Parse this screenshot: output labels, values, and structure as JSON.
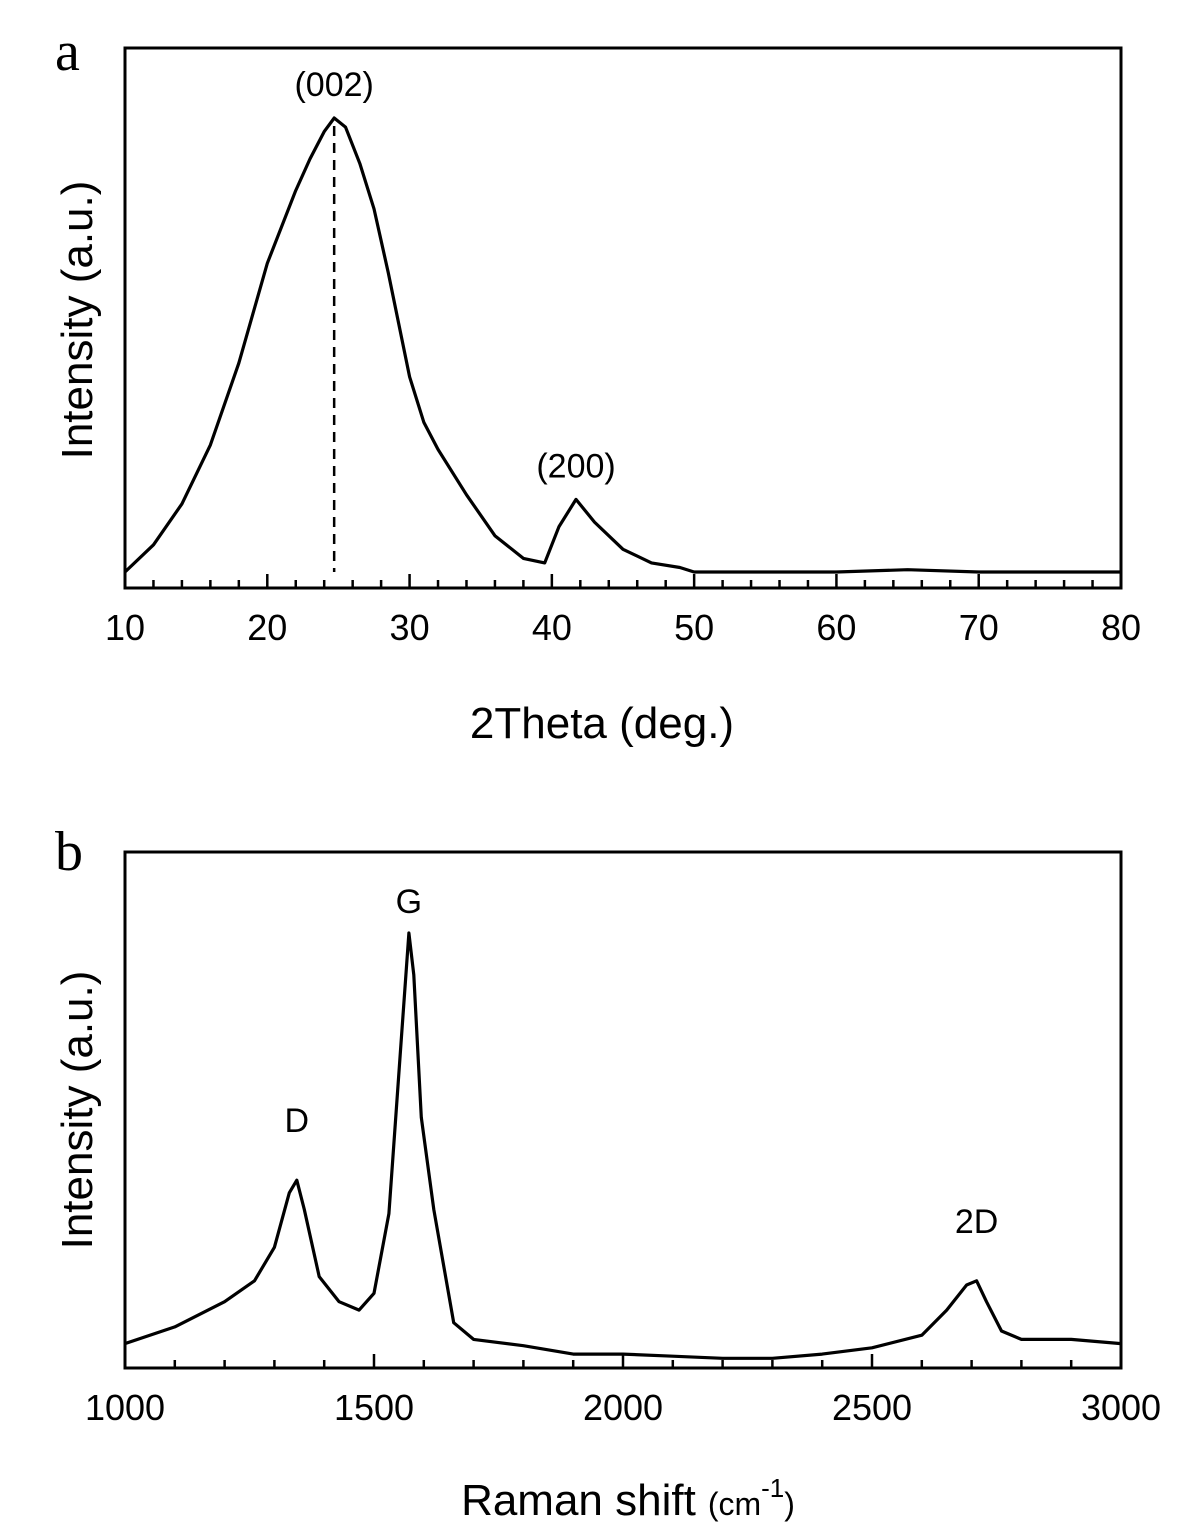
{
  "chart_data": [
    {
      "panel": "a",
      "type": "line",
      "title": "",
      "xlabel": "2Theta (deg.)",
      "ylabel": "Intensity (a.u.)",
      "xlim": [
        10,
        80
      ],
      "ylim": [
        0,
        1.05
      ],
      "xticks": [
        10,
        20,
        30,
        40,
        50,
        60,
        70,
        80
      ],
      "minor_tick_step": 2,
      "grid": false,
      "x": [
        10,
        12,
        14,
        16,
        18,
        20,
        22,
        23,
        24,
        24.7,
        25.5,
        26.5,
        27.5,
        28.5,
        30,
        31,
        32,
        34,
        36,
        38,
        39.5,
        40.5,
        41.7,
        43,
        45,
        47,
        49,
        50,
        55,
        60,
        65,
        70,
        75,
        80
      ],
      "values": [
        0.0,
        0.06,
        0.15,
        0.28,
        0.46,
        0.68,
        0.84,
        0.91,
        0.97,
        1.0,
        0.98,
        0.9,
        0.8,
        0.66,
        0.43,
        0.33,
        0.27,
        0.17,
        0.08,
        0.03,
        0.02,
        0.1,
        0.16,
        0.11,
        0.05,
        0.02,
        0.01,
        0.0,
        0.0,
        0.0,
        0.005,
        0.0,
        0.0,
        0.0
      ],
      "annotations": [
        {
          "text": "(002)",
          "x": 24.7,
          "y": 1.0,
          "dashed_drop_line": true
        },
        {
          "text": "(200)",
          "x": 41.7,
          "y": 0.16
        }
      ]
    },
    {
      "panel": "b",
      "type": "line",
      "title": "",
      "xlabel": "Raman shift",
      "xlabel_unit": "(cm",
      "xlabel_exp": "-1",
      "xlabel_close": ")",
      "ylabel": "Intensity (a.u.)",
      "xlim": [
        1000,
        3000
      ],
      "ylim": [
        0,
        1.05
      ],
      "xticks": [
        1000,
        1500,
        2000,
        2500,
        3000
      ],
      "minor_tick_step": 100,
      "grid": false,
      "x": [
        1000,
        1100,
        1200,
        1260,
        1300,
        1330,
        1345,
        1360,
        1390,
        1430,
        1470,
        1500,
        1530,
        1555,
        1570,
        1580,
        1595,
        1620,
        1660,
        1700,
        1800,
        1900,
        2000,
        2100,
        2200,
        2300,
        2400,
        2500,
        2600,
        2650,
        2690,
        2710,
        2730,
        2760,
        2800,
        2900,
        3000
      ],
      "values": [
        0.02,
        0.06,
        0.12,
        0.17,
        0.25,
        0.38,
        0.41,
        0.34,
        0.18,
        0.12,
        0.1,
        0.14,
        0.33,
        0.75,
        1.0,
        0.9,
        0.56,
        0.34,
        0.07,
        0.03,
        0.015,
        -0.005,
        -0.005,
        -0.01,
        -0.015,
        -0.015,
        -0.005,
        0.01,
        0.04,
        0.1,
        0.16,
        0.17,
        0.12,
        0.05,
        0.03,
        0.03,
        0.02
      ],
      "annotations": [
        {
          "text": "D",
          "x": 1345,
          "y": 0.41
        },
        {
          "text": "G",
          "x": 1570,
          "y": 1.0
        },
        {
          "text": "2D",
          "x": 2710,
          "y": 0.17
        }
      ]
    }
  ]
}
